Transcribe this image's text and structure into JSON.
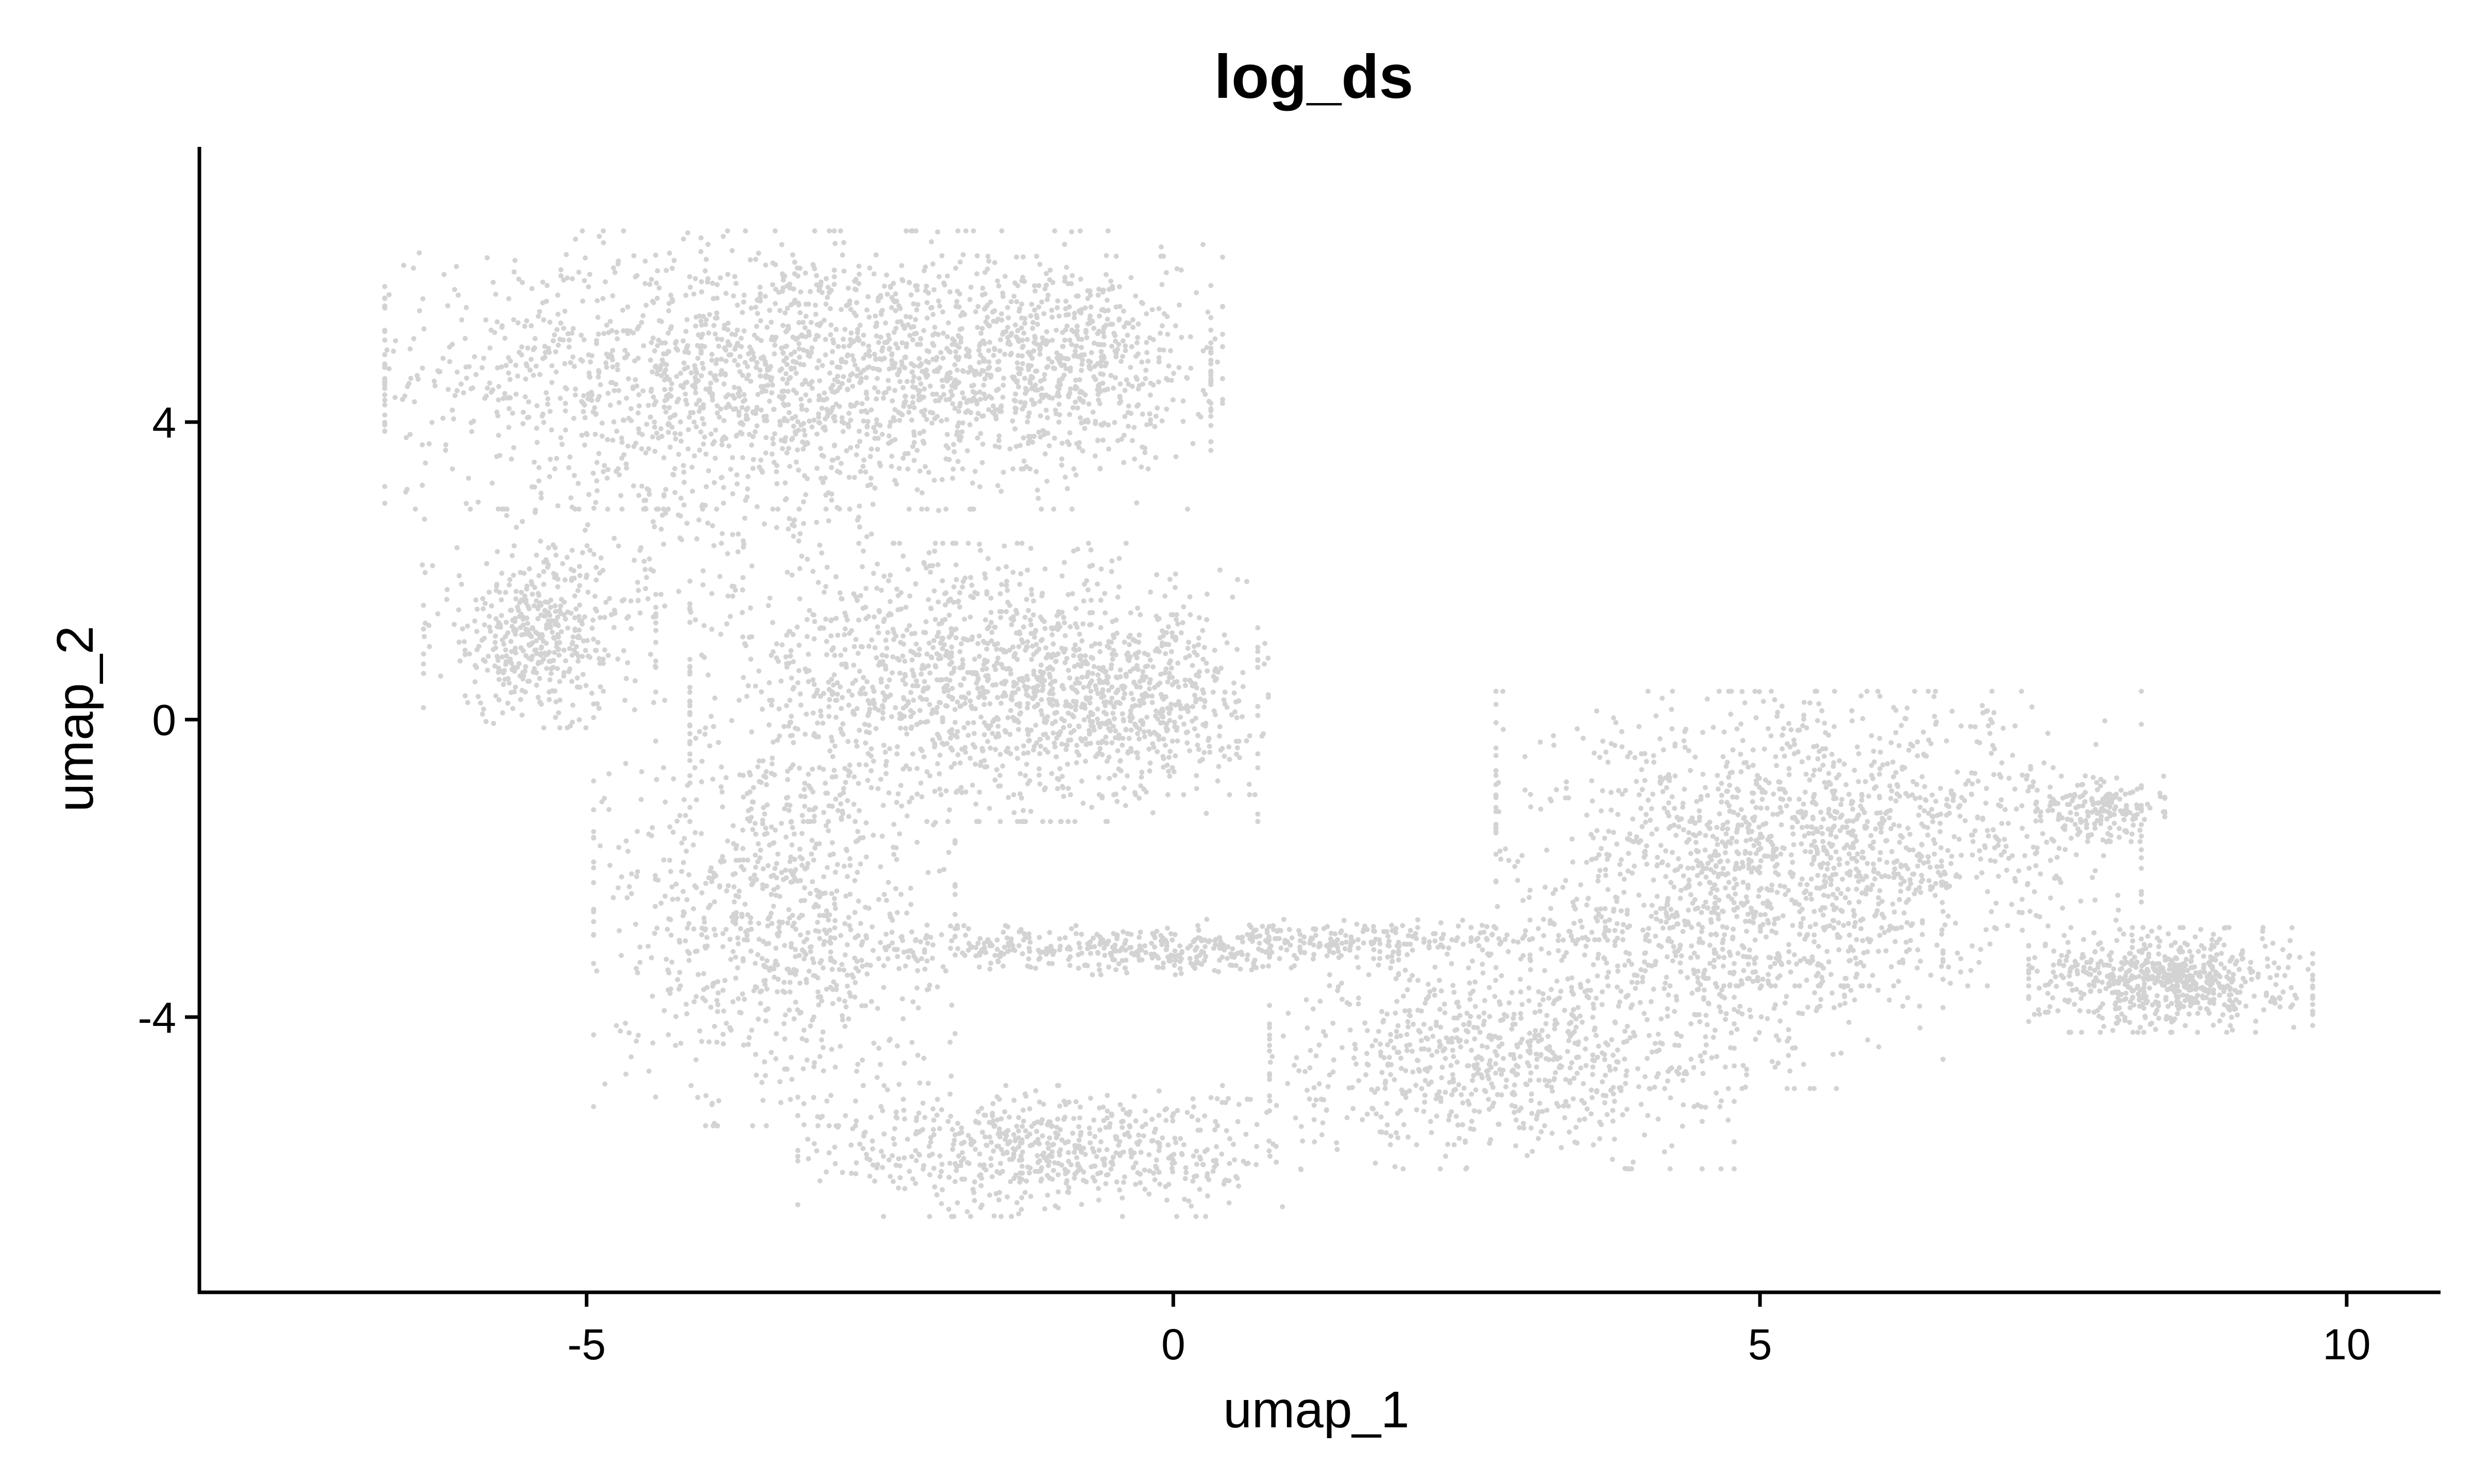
{
  "chart_data": {
    "type": "scatter",
    "title": "log_ds",
    "xlabel": "umap_1",
    "ylabel": "umap_2",
    "xlim": [
      -8.3,
      10.8
    ],
    "ylim": [
      -7.7,
      7.7
    ],
    "x_ticks": [
      {
        "value": -5,
        "label": "-5"
      },
      {
        "value": 0,
        "label": "0"
      },
      {
        "value": 5,
        "label": "5"
      },
      {
        "value": 10,
        "label": "10"
      }
    ],
    "y_ticks": [
      {
        "value": -4,
        "label": "-4"
      },
      {
        "value": 0,
        "label": "0"
      },
      {
        "value": 4,
        "label": "4"
      }
    ],
    "grid": false,
    "legend": "none",
    "point_color": "#d3d3d3",
    "clusters": [
      {
        "cx": -3.2,
        "cy": 4.7,
        "sx": 1.6,
        "sy": 0.85,
        "n": 1900
      },
      {
        "cx": -0.9,
        "cy": 4.8,
        "sx": 0.6,
        "sy": 0.65,
        "n": 450
      },
      {
        "cx": -5.4,
        "cy": 1.1,
        "sx": 0.45,
        "sy": 0.55,
        "n": 450
      },
      {
        "cx": -4.2,
        "cy": 2.7,
        "sx": 1.0,
        "sy": 0.6,
        "n": 180
      },
      {
        "cx": -1.7,
        "cy": 0.5,
        "sx": 1.1,
        "sy": 0.85,
        "n": 1300
      },
      {
        "cx": -0.4,
        "cy": 0.2,
        "sx": 0.55,
        "sy": 0.55,
        "n": 400
      },
      {
        "cx": -3.4,
        "cy": -2.6,
        "sx": 0.7,
        "sy": 1.3,
        "n": 850
      },
      {
        "cx": -1.0,
        "cy": -5.8,
        "sx": 1.0,
        "sy": 0.4,
        "n": 650
      },
      {
        "cx": -0.5,
        "cy": -3.1,
        "sx": 1.1,
        "sy": 0.15,
        "n": 400
      },
      {
        "cx": 1.7,
        "cy": -2.95,
        "sx": 0.9,
        "sy": 0.12,
        "n": 180
      },
      {
        "cx": 2.8,
        "cy": -4.5,
        "sx": 0.9,
        "sy": 0.7,
        "n": 750
      },
      {
        "cx": 4.8,
        "cy": -3.2,
        "sx": 0.8,
        "sy": 0.8,
        "n": 500
      },
      {
        "cx": 5.5,
        "cy": -1.6,
        "sx": 1.25,
        "sy": 0.9,
        "n": 1350
      },
      {
        "cx": 8.5,
        "cy": -3.5,
        "sx": 0.55,
        "sy": 0.32,
        "n": 650
      },
      {
        "cx": 7.9,
        "cy": -1.2,
        "sx": 0.25,
        "sy": 0.2,
        "n": 150
      }
    ]
  }
}
